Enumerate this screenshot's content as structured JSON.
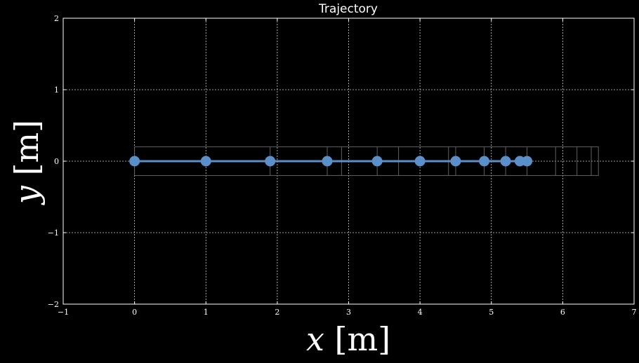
{
  "chart_data": {
    "type": "line",
    "title": "Trajectory",
    "xlabel": "x [m]",
    "ylabel": "y [m]",
    "xlim": [
      -1,
      7
    ],
    "ylim": [
      -2,
      2
    ],
    "xticks": [
      -1,
      0,
      1,
      2,
      3,
      4,
      5,
      6,
      7
    ],
    "yticks": [
      -2,
      -1,
      0,
      1,
      2
    ],
    "grid": true,
    "series": [
      {
        "x": [
          0,
          1,
          1.9,
          2.7,
          3.4,
          4.0,
          4.5,
          4.9,
          5.2,
          5.4,
          5.5
        ],
        "y": [
          0,
          0,
          0,
          0,
          0,
          0,
          0,
          0,
          0,
          0,
          0
        ],
        "color": "#5b8fc9",
        "marker": "circle"
      }
    ],
    "footprint_boxes": {
      "x_edges": [
        0,
        1.9,
        2.7,
        2.9,
        3.4,
        3.7,
        4.4,
        4.5,
        4.9,
        5.2,
        5.5,
        5.9,
        6.2,
        6.4,
        6.5
      ],
      "y_range": [
        -0.2,
        0.2
      ],
      "color": "#6a6a6a"
    },
    "colors": {
      "background": "#000000",
      "axes": "#ffffff",
      "grid": "#cfcfcf"
    }
  }
}
